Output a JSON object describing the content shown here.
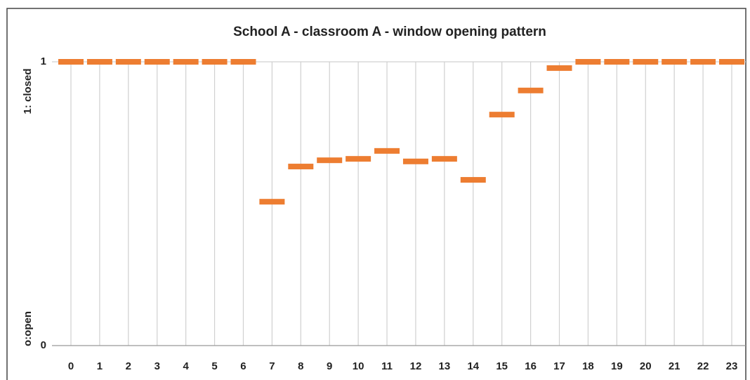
{
  "chart_data": {
    "type": "line",
    "title": "School A - classroom A - window opening pattern",
    "y_top_label": "1: closed",
    "y_bottom_label": "o:open",
    "categories": [
      "0",
      "1",
      "2",
      "3",
      "4",
      "5",
      "6",
      "7",
      "8",
      "9",
      "10",
      "11",
      "12",
      "13",
      "14",
      "15",
      "16",
      "17",
      "18",
      "19",
      "20",
      "21",
      "22",
      "23"
    ],
    "series": [
      {
        "color": "#ed7d31",
        "values": [
          1,
          1,
          1,
          1,
          1,
          1,
          1,
          0.507,
          0.631,
          0.653,
          0.658,
          0.686,
          0.649,
          0.658,
          0.584,
          0.814,
          0.899,
          0.978,
          1,
          1,
          1,
          1,
          1,
          1
        ]
      }
    ],
    "ylim": [
      0,
      1
    ],
    "yticks": [
      0,
      1
    ],
    "grid": true,
    "marker": "dash"
  }
}
